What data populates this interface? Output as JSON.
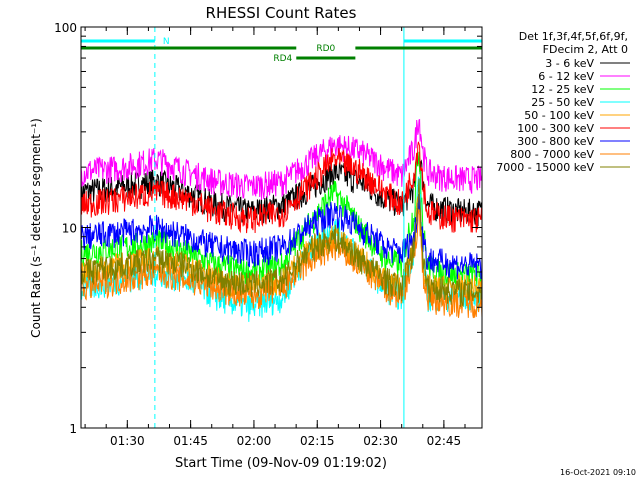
{
  "chart_data": {
    "type": "line",
    "title": "RHESSI Count Rates",
    "xlabel": "Start Time (09-Nov-09 01:19:02)",
    "ylabel": "Count Rate (s⁻¹ detector segment⁻¹)",
    "ylim": [
      1,
      100
    ],
    "yscale": "log",
    "xlim_minutes": [
      0,
      95
    ],
    "x_unit": "minutes after 01:19:02",
    "x_ticks": [
      {
        "label": "01:30",
        "value": 10.97
      },
      {
        "label": "01:45",
        "value": 25.97
      },
      {
        "label": "02:00",
        "value": 40.97
      },
      {
        "label": "02:15",
        "value": 55.97
      },
      {
        "label": "02:30",
        "value": 70.97
      },
      {
        "label": "02:45",
        "value": 85.97
      }
    ],
    "y_ticks": [
      {
        "label": "1",
        "value": 1
      },
      {
        "label": "10",
        "value": 10
      },
      {
        "label": "100",
        "value": 100
      }
    ],
    "legend_header": [
      "Det 1f,3f,4f,5f,6f,9f,",
      "FDecim 2, Att 0"
    ],
    "legend_position": "top-right",
    "series": [
      {
        "name": "3 - 6 keV",
        "color": "#000000",
        "x": [
          0,
          10,
          18,
          25,
          32,
          40,
          48,
          55,
          60,
          66,
          72,
          76,
          79,
          80,
          81,
          82,
          85,
          90,
          95
        ],
        "values": [
          15,
          16,
          17,
          15,
          13,
          12,
          13,
          16,
          19,
          17,
          14,
          13,
          16,
          24,
          17,
          13,
          12.5,
          12,
          12
        ]
      },
      {
        "name": "6 - 12 keV",
        "color": "#ff00ff",
        "x": [
          0,
          10,
          18,
          25,
          32,
          40,
          48,
          55,
          60,
          66,
          72,
          76,
          79,
          80,
          81,
          82,
          85,
          90,
          95
        ],
        "values": [
          19,
          20,
          22,
          19,
          17,
          16,
          17,
          22,
          26,
          24,
          20,
          18,
          25,
          36,
          24,
          19,
          18,
          17.5,
          17.5
        ]
      },
      {
        "name": "12 - 25 keV",
        "color": "#00ff00",
        "x": [
          0,
          10,
          18,
          25,
          32,
          40,
          48,
          55,
          60,
          66,
          72,
          76,
          79,
          80,
          81,
          82,
          85,
          90,
          95
        ],
        "values": [
          7.5,
          8,
          8.5,
          7.5,
          6.5,
          6,
          6.5,
          11,
          15,
          10,
          7,
          6.5,
          12,
          25,
          10,
          6.5,
          6,
          5.8,
          5.8
        ]
      },
      {
        "name": "25 - 50 keV",
        "color": "#00ffff",
        "x": [
          0,
          10,
          18,
          25,
          32,
          40,
          48,
          55,
          60,
          66,
          72,
          76,
          79,
          80,
          81,
          82,
          85,
          90,
          95
        ],
        "values": [
          5,
          5.5,
          6,
          5.5,
          4.5,
          4,
          4.5,
          8,
          10,
          7,
          5,
          4.5,
          8,
          18,
          7,
          4.5,
          4.5,
          4.5,
          4.5
        ]
      },
      {
        "name": "50 - 100 keV",
        "color": "#ffa500",
        "x": [
          0,
          10,
          18,
          25,
          32,
          40,
          48,
          55,
          60,
          66,
          72,
          76,
          79,
          80,
          81,
          82,
          85,
          90,
          95
        ],
        "values": [
          6,
          6.5,
          7,
          6.5,
          5.5,
          5,
          5.5,
          8,
          9,
          7,
          5.5,
          5,
          8,
          15,
          7,
          5,
          5,
          5,
          5
        ]
      },
      {
        "name": "100 - 300 keV",
        "color": "#ff0000",
        "x": [
          0,
          10,
          18,
          25,
          32,
          40,
          48,
          55,
          60,
          66,
          72,
          76,
          79,
          80,
          81,
          82,
          85,
          90,
          95
        ],
        "values": [
          13,
          14,
          15,
          14,
          12,
          11,
          12,
          17,
          22,
          19,
          15,
          13,
          19,
          27,
          17,
          12,
          11.5,
          11,
          11
        ]
      },
      {
        "name": "300 - 800 keV",
        "color": "#0000ff",
        "x": [
          0,
          10,
          18,
          25,
          32,
          40,
          48,
          55,
          60,
          66,
          72,
          76,
          79,
          80,
          81,
          82,
          85,
          90,
          95
        ],
        "values": [
          9,
          9.5,
          10,
          9,
          8,
          7.5,
          8,
          10.5,
          12,
          10,
          8,
          7.5,
          9,
          14,
          9,
          7,
          6.8,
          6.5,
          6.5
        ]
      },
      {
        "name": "800 - 7000 keV",
        "color": "#ff7f00",
        "x": [
          0,
          10,
          18,
          25,
          32,
          40,
          48,
          55,
          60,
          66,
          72,
          76,
          79,
          80,
          81,
          82,
          85,
          90,
          95
        ],
        "values": [
          5,
          5.5,
          6,
          5.5,
          5,
          4.5,
          5,
          7,
          8,
          6.5,
          5,
          4.5,
          7,
          12,
          6,
          4.5,
          4.3,
          4.2,
          4.2
        ]
      },
      {
        "name": "7000 - 15000 keV",
        "color": "#808000",
        "x": [
          0,
          10,
          18,
          25,
          32,
          40,
          48,
          55,
          60,
          66,
          72,
          76,
          79,
          80,
          81,
          82,
          85,
          90,
          95
        ],
        "values": [
          6,
          6.5,
          7,
          6.5,
          5.5,
          5.2,
          5.5,
          8,
          9,
          7,
          5.5,
          5,
          8,
          16,
          7,
          5,
          5,
          4.8,
          4.8
        ]
      }
    ],
    "annotations": {
      "n_label": "N",
      "rd0_label": "RD0",
      "rd4_label": "RD4",
      "n_color": "#00ffff",
      "rd_color": "#008000",
      "n_intervals_minutes": [
        [
          0,
          17.5
        ],
        [
          76.5,
          95
        ]
      ],
      "rd0_intervals_minutes": [
        [
          0,
          51
        ],
        [
          65,
          95
        ]
      ],
      "rd4_interval_minutes": [
        51,
        65
      ],
      "vertical_markers_minutes": [
        17.5,
        76.5,
        95
      ]
    },
    "timestamp": "16-Oct-2021 09:10"
  }
}
